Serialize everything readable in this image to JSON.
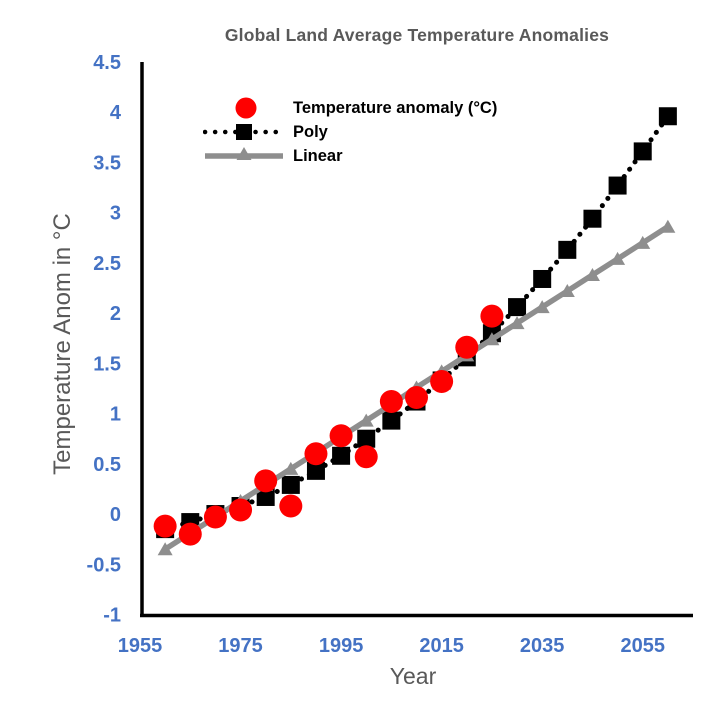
{
  "title": "Global Land Average Temperature Anomalies",
  "axes": {
    "x_label": "Year",
    "y_label": "Temperature Anom in °C"
  },
  "legend": {
    "items": [
      {
        "label": "Temperature anomaly (°C)",
        "marker": "circle-icon"
      },
      {
        "label": "Poly",
        "marker": "square-dotted-line-icon"
      },
      {
        "label": "Linear",
        "marker": "triangle-solid-line-icon"
      }
    ]
  },
  "colors": {
    "anomaly_red": "#FE0000",
    "poly_black": "#000000",
    "linear_gray": "#8E8E8E",
    "tick_label_blue": "#4472C4",
    "title_gray": "#595959",
    "axis_line_black": "#000000"
  },
  "chart_data": {
    "type": "scatter",
    "title": "Global Land Average Temperature Anomalies",
    "xlabel": "Year",
    "ylabel": "Temperature Anom in °C",
    "xlim": [
      1955,
      2065
    ],
    "ylim": [
      -1,
      4.5
    ],
    "x_ticks": [
      1955,
      1975,
      1995,
      2015,
      2035,
      2055
    ],
    "y_ticks": [
      -1,
      -0.5,
      0,
      0.5,
      1,
      1.5,
      2,
      2.5,
      3,
      3.5,
      4,
      4.5
    ],
    "grid": false,
    "legend_position": "upper-left-inside",
    "series": [
      {
        "name": "Temperature anomaly (°C)",
        "type": "scatter",
        "marker": "circle",
        "color": "#FE0000",
        "x": [
          1960,
          1965,
          1970,
          1975,
          1980,
          1985,
          1990,
          1995,
          2000,
          2005,
          2010,
          2015,
          2020,
          2025
        ],
        "y": [
          -0.12,
          -0.2,
          -0.03,
          0.04,
          0.33,
          0.08,
          0.6,
          0.78,
          0.57,
          1.12,
          1.16,
          1.32,
          1.66,
          1.97
        ]
      },
      {
        "name": "Poly",
        "type": "line",
        "line_style": "dotted",
        "marker": "square",
        "color": "#000000",
        "x": [
          1960,
          1965,
          1970,
          1975,
          1980,
          1985,
          1990,
          1995,
          2000,
          2005,
          2010,
          2015,
          2020,
          2025,
          2030,
          2035,
          2040,
          2045,
          2050,
          2055,
          2060
        ],
        "y": [
          -0.15,
          -0.08,
          0.0,
          0.08,
          0.17,
          0.29,
          0.43,
          0.58,
          0.75,
          0.93,
          1.12,
          1.33,
          1.56,
          1.8,
          2.06,
          2.34,
          2.63,
          2.94,
          3.27,
          3.61,
          3.96
        ]
      },
      {
        "name": "Linear",
        "type": "line",
        "line_style": "solid",
        "marker": "triangle",
        "color": "#8E8E8E",
        "x": [
          1960,
          1965,
          1970,
          1975,
          1980,
          1985,
          1990,
          1995,
          2000,
          2005,
          2010,
          2015,
          2020,
          2025,
          2030,
          2035,
          2040,
          2045,
          2050,
          2055,
          2060
        ],
        "y": [
          -0.35,
          -0.19,
          -0.03,
          0.13,
          0.29,
          0.45,
          0.61,
          0.77,
          0.93,
          1.09,
          1.26,
          1.42,
          1.58,
          1.74,
          1.9,
          2.06,
          2.22,
          2.38,
          2.54,
          2.7,
          2.86
        ]
      }
    ]
  }
}
